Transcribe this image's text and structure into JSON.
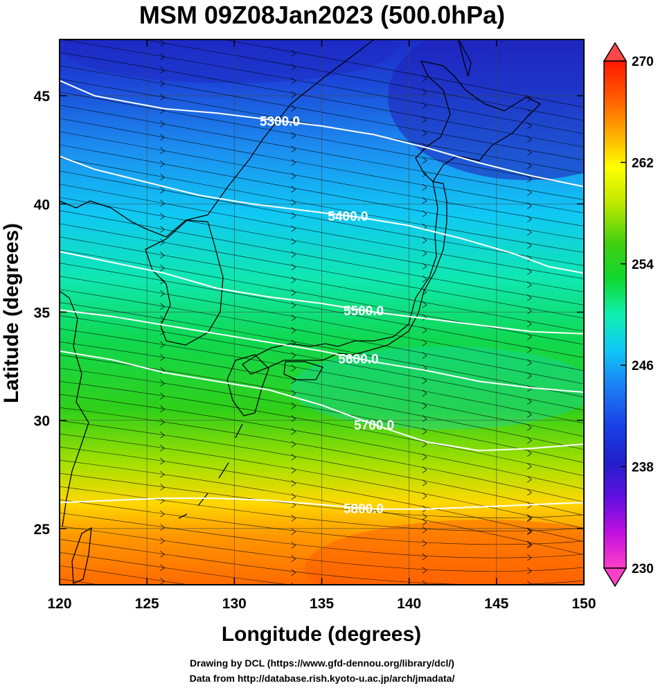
{
  "title": "MSM 09Z08Jan2023 (500.0hPa)",
  "credits": {
    "line1": "Drawing by DCL (https://www.gfd-dennou.org/library/dcl/)",
    "line2": "Data from http://database.rish.kyoto-u.ac.jp/arch/jmadata/"
  },
  "chart_data": {
    "type": "heatmap",
    "title": "MSM 09Z08Jan2023 (500.0hPa)",
    "xlabel": "Longitude (degrees)",
    "ylabel": "Latitude  (degrees)",
    "xlim": [
      120,
      150
    ],
    "ylim": [
      22.4,
      47.6
    ],
    "xticks": [
      "120",
      "125",
      "130",
      "135",
      "140",
      "145",
      "150"
    ],
    "yticks": [
      "25",
      "30",
      "35",
      "40",
      "45"
    ],
    "grid": true,
    "colorbar": {
      "range": [
        230,
        270
      ],
      "ticks": [
        "230",
        "238",
        "246",
        "254",
        "262",
        "270"
      ],
      "colors": [
        "#ff40c8",
        "#b000e0",
        "#6010e0",
        "#1a1ad8",
        "#1e5aee",
        "#1aa0f8",
        "#10e0f0",
        "#10f080",
        "#18d018",
        "#60d010",
        "#c8e800",
        "#ffff00",
        "#ffc000",
        "#ff8000",
        "#ff4000",
        "#ff0000"
      ]
    },
    "contours": [
      {
        "label": "5300.0",
        "lon": [
          120,
          122,
          126,
          129,
          132,
          135,
          138,
          141,
          144,
          147,
          150
        ],
        "lat": [
          45.7,
          45.0,
          44.4,
          44.2,
          43.9,
          43.6,
          43.2,
          42.6,
          41.9,
          41.3,
          40.8
        ]
      },
      {
        "label": "5400.0",
        "lon": [
          120,
          122,
          125,
          128,
          131,
          134,
          137,
          140,
          143,
          146,
          148,
          150
        ],
        "lat": [
          42.2,
          41.6,
          41.0,
          40.4,
          40.0,
          39.7,
          39.4,
          39.0,
          38.4,
          37.7,
          37.1,
          36.8
        ]
      },
      {
        "label": "5500.0",
        "lon": [
          120,
          123,
          126,
          129,
          132,
          135,
          138,
          141,
          144,
          147,
          150
        ],
        "lat": [
          37.8,
          37.3,
          36.8,
          36.1,
          35.7,
          35.4,
          35.0,
          34.7,
          34.4,
          34.1,
          34.0
        ]
      },
      {
        "label": "5600.0",
        "lon": [
          120,
          123,
          126,
          129,
          132,
          135,
          138,
          141,
          144,
          147,
          150
        ],
        "lat": [
          35.1,
          34.8,
          34.4,
          34.0,
          33.6,
          33.2,
          32.7,
          32.3,
          31.8,
          31.5,
          31.3
        ]
      },
      {
        "label": "5700.0",
        "lon": [
          120,
          123,
          126,
          129,
          132,
          135,
          138,
          141,
          144,
          147,
          150
        ],
        "lat": [
          33.2,
          32.8,
          32.2,
          31.8,
          31.4,
          30.7,
          29.8,
          29.0,
          28.6,
          28.7,
          28.9
        ]
      },
      {
        "label": "5800.0",
        "lon": [
          120,
          123,
          126,
          129,
          132,
          135,
          138,
          141,
          144,
          147,
          150
        ],
        "lat": [
          26.2,
          26.3,
          26.4,
          26.4,
          26.3,
          26.1,
          25.9,
          25.9,
          26.0,
          26.1,
          26.2
        ]
      }
    ]
  }
}
